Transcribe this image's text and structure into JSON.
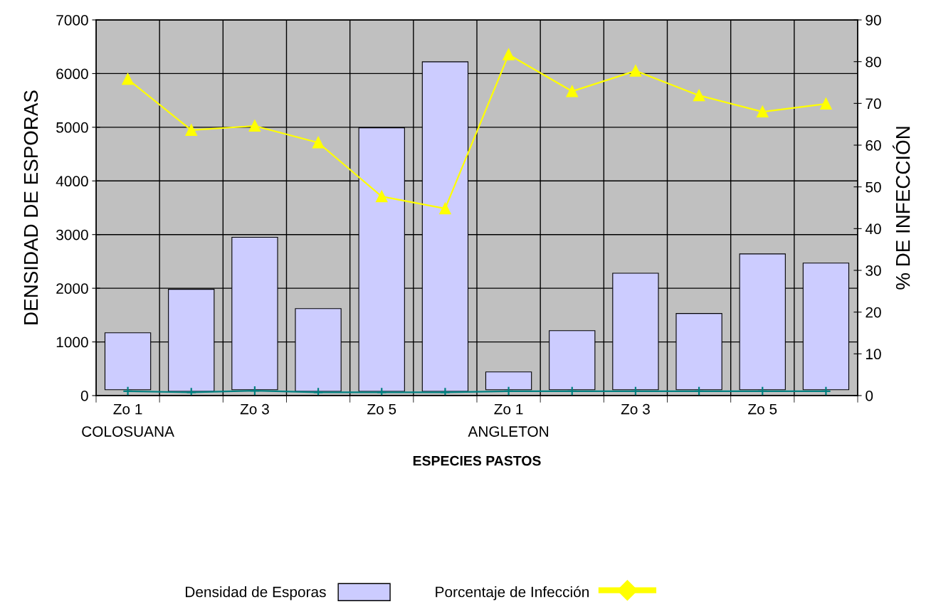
{
  "chart_data": {
    "type": "bar",
    "xlabel": "ESPECIES PASTOS",
    "ylabel": "DENSIDAD DE ESPORAS",
    "y2label": "% DE INFECCIÓN",
    "categories": [
      "Zo 1\nCOLOSUANA",
      null,
      "Zo 3",
      null,
      "Zo 5",
      null,
      "Zo 1\nANGLETON",
      null,
      "Zo 3",
      null,
      "Zo 5",
      null
    ],
    "series": [
      {
        "name": "Densidad de Esporas",
        "color": "#ccccff",
        "base": [
          110,
          80,
          110,
          80,
          80,
          80,
          110,
          110,
          110,
          110,
          110,
          110
        ],
        "values": [
          1060,
          1900,
          2840,
          1540,
          4910,
          6140,
          330,
          1100,
          2170,
          1420,
          2530,
          2360
        ]
      },
      {
        "name": "Porcentaje de Infección",
        "type": "line",
        "axis": "y2",
        "color": "#ffff00",
        "marker": "triangle",
        "values": [
          75.8,
          63.6,
          64.6,
          60.6,
          47.7,
          44.8,
          81.7,
          72.9,
          77.8,
          71.9,
          68,
          69.9
        ]
      },
      {
        "type": "line",
        "color": "#008080",
        "marker": "cross",
        "values": [
          80,
          60,
          90,
          60,
          60,
          60,
          80,
          80,
          80,
          80,
          80,
          80
        ]
      }
    ],
    "ylim": [
      0,
      7000
    ],
    "yticks": [
      0,
      1000,
      2000,
      3000,
      4000,
      5000,
      6000,
      7000
    ],
    "y2lim": [
      0,
      90
    ],
    "y2ticks": [
      0,
      10,
      20,
      30,
      40,
      50,
      60,
      70,
      80,
      90
    ],
    "grid": true,
    "legend": "bottom"
  }
}
